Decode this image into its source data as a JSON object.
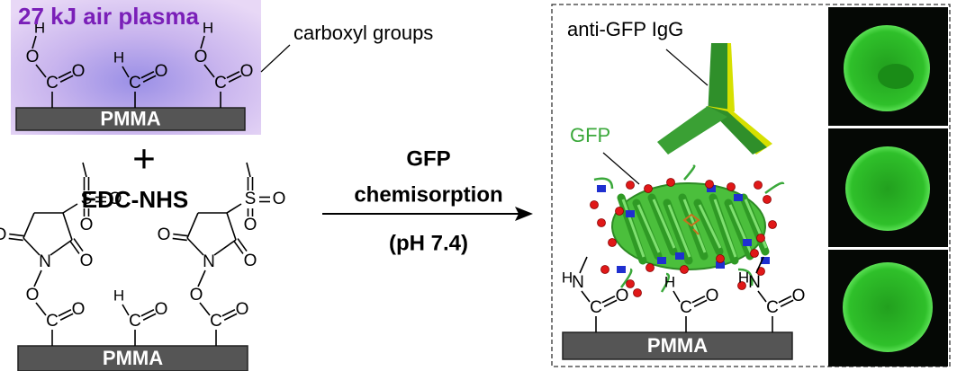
{
  "panel_1": {
    "title": "27 kJ air plasma",
    "callout": "carboxyl groups",
    "substrate": "PMMA"
  },
  "operator": "+",
  "panel_2": {
    "title": "EDC-NHS",
    "substrate": "PMMA"
  },
  "arrow": {
    "lines": [
      "GFP",
      "chemisorption",
      "(pH 7.4)"
    ]
  },
  "panel_3": {
    "antibody": "anti-GFP IgG",
    "protein": "GFP",
    "substrate": "PMMA"
  },
  "atoms": {
    "hydrogen": "H",
    "oxygen": "O",
    "carbon": "C",
    "sulfur": "S",
    "nitrogen": "N"
  }
}
